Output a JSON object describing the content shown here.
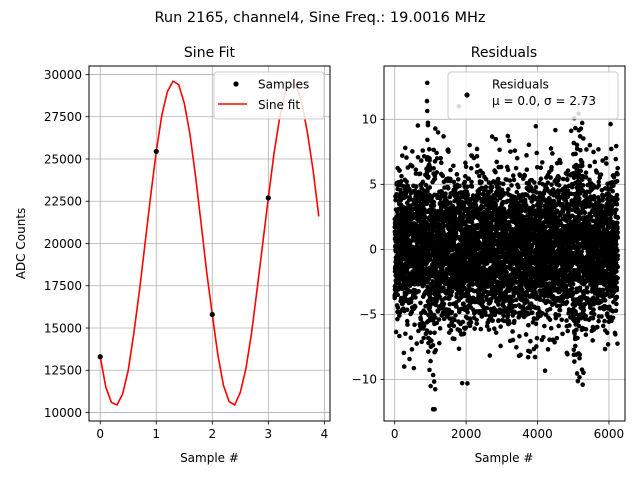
{
  "suptitle": "Run 2165, channel4, Sine Freq.: 19.0016 MHz",
  "chart_data": [
    {
      "type": "line",
      "title": "Sine Fit",
      "xlabel": "Sample #",
      "ylabel": "ADC Counts",
      "xlim": [
        -0.2,
        4.1
      ],
      "ylim": [
        9500,
        30500
      ],
      "xticks": [
        0,
        1,
        2,
        3,
        4
      ],
      "xtick_labels": [
        "0",
        "1",
        "2",
        "3",
        "4"
      ],
      "yticks": [
        10000,
        12500,
        15000,
        17500,
        20000,
        22500,
        25000,
        27500,
        30000
      ],
      "ytick_labels": [
        "10000",
        "12500",
        "15000",
        "17500",
        "20000",
        "22500",
        "25000",
        "27500",
        "30000"
      ],
      "grid": true,
      "legend_position": "top-right",
      "series": [
        {
          "name": "Samples",
          "style": "points",
          "color": "#000000",
          "x": [
            0,
            1,
            2,
            3
          ],
          "y": [
            13300,
            25450,
            15800,
            22700
          ]
        },
        {
          "name": "Sine fit",
          "style": "line",
          "color": "#ff0000",
          "x": [
            0,
            0.1,
            0.2,
            0.3,
            0.4,
            0.5,
            0.6,
            0.7,
            0.8,
            0.9,
            1.0,
            1.1,
            1.2,
            1.3,
            1.4,
            1.5,
            1.6,
            1.7,
            1.8,
            1.9,
            2.0,
            2.1,
            2.2,
            2.3,
            2.4,
            2.5,
            2.6,
            2.7,
            2.8,
            2.9,
            3.0,
            3.1,
            3.2,
            3.3,
            3.4,
            3.5,
            3.6,
            3.7,
            3.8,
            3.9
          ],
          "y": [
            13300,
            11500,
            10600,
            10450,
            11100,
            12500,
            14700,
            17200,
            20000,
            22800,
            25450,
            27600,
            29000,
            29600,
            29400,
            28300,
            26500,
            24000,
            21200,
            18300,
            15800,
            13400,
            11600,
            10650,
            10450,
            11200,
            12600,
            14700,
            17300,
            20000,
            22700,
            25300,
            27400,
            28900,
            29500,
            29300,
            28300,
            26500,
            24300,
            21600
          ]
        }
      ]
    },
    {
      "type": "scatter",
      "title": "Residuals",
      "xlabel": "Sample #",
      "ylabel": "",
      "xlim": [
        -300,
        6450
      ],
      "ylim": [
        -13.2,
        14.1
      ],
      "xticks": [
        0,
        2000,
        4000,
        6000
      ],
      "xtick_labels": [
        "0",
        "2000",
        "4000",
        "6000"
      ],
      "yticks": [
        -10,
        -5,
        0,
        5,
        10
      ],
      "ytick_labels": [
        "−10",
        "−5",
        "0",
        "5",
        "10"
      ],
      "grid": true,
      "legend_position": "top-right",
      "n_points": 6250,
      "mean": 0.0,
      "sigma": 2.73,
      "legend_lines": [
        "Residuals",
        "μ = 0.0, σ = 2.73"
      ],
      "series": [
        {
          "name": "Residuals",
          "color": "#000000",
          "x_range": [
            0,
            6249
          ]
        }
      ]
    }
  ]
}
